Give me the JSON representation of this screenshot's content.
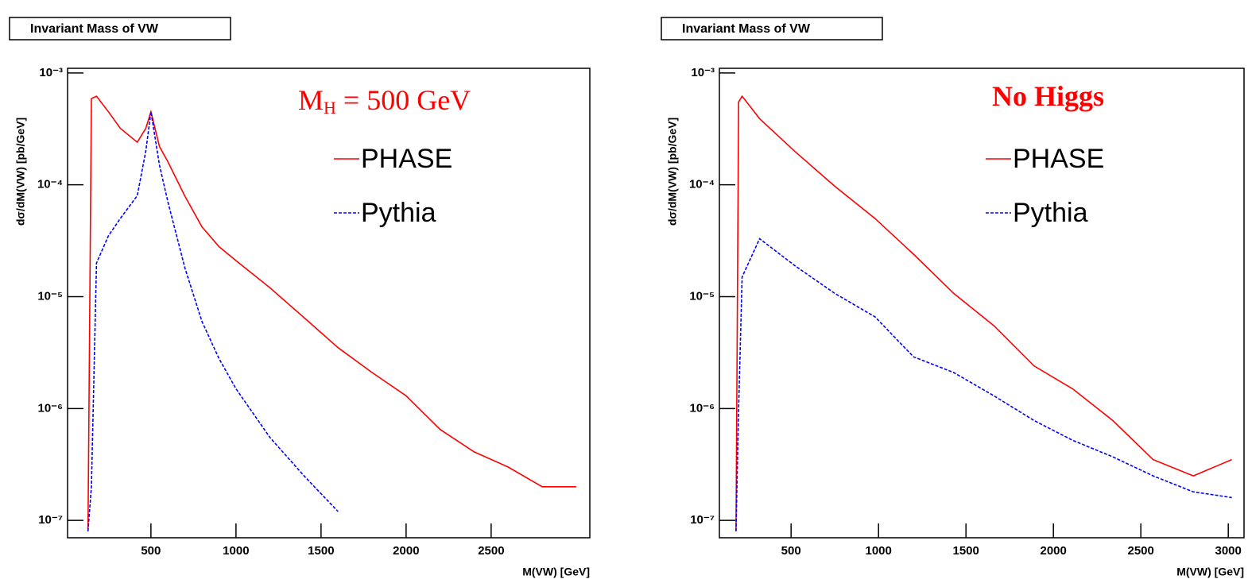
{
  "chart_data": [
    {
      "type": "line",
      "title": "Invariant Mass of VW",
      "xlabel": "M(VW) [GeV]",
      "ylabel": "dσ/dM(VW) [pb/GeV]",
      "annotation": {
        "text": "M",
        "sub": "H",
        "rest": " = 500 GeV"
      },
      "log_y": true,
      "xlim": [
        10,
        3080
      ],
      "ylim": [
        7e-08,
        0.0011
      ],
      "xticks": [
        500,
        1000,
        1500,
        2000,
        2500
      ],
      "yticks": [
        {
          "value": 0.001,
          "label": "10⁻³"
        },
        {
          "value": 0.0001,
          "label": "10⁻⁴"
        },
        {
          "value": 1e-05,
          "label": "10⁻⁵"
        },
        {
          "value": 1e-06,
          "label": "10⁻⁶"
        },
        {
          "value": 1e-07,
          "label": "10⁻⁷"
        }
      ],
      "x": [
        130,
        150,
        180,
        250,
        320,
        420,
        470,
        500,
        550,
        600,
        700,
        800,
        900,
        1000,
        1200,
        1400,
        1600,
        1800,
        2000,
        2200,
        2400,
        2600,
        2800,
        3000
      ],
      "series": [
        {
          "name": "PHASE",
          "color": "#ff0000",
          "linestyle": "solid",
          "values": [
            8e-08,
            0.00059,
            0.00062,
            0.00045,
            0.00032,
            0.00024,
            0.00032,
            0.00045,
            0.00022,
            0.00016,
            7.9e-05,
            4.2e-05,
            2.8e-05,
            2.1e-05,
            1.2e-05,
            6.5e-06,
            3.5e-06,
            2.1e-06,
            1.3e-06,
            6.5e-07,
            4.1e-07,
            3e-07,
            2e-07,
            2e-07
          ]
        },
        {
          "name": "Pythia",
          "color": "#0000ff",
          "linestyle": "dashed",
          "values": [
            8e-08,
            2e-07,
            2e-05,
            3.5e-05,
            5e-05,
            8e-05,
            0.0002,
            0.00045,
            0.00015,
            7e-05,
            1.8e-05,
            6e-06,
            2.8e-06,
            1.5e-06,
            5.5e-07,
            2.5e-07,
            1.2e-07,
            null,
            null,
            null,
            null,
            null,
            null,
            null
          ]
        }
      ]
    },
    {
      "type": "line",
      "title": "Invariant Mass of VW",
      "xlabel": "M(VW) [GeV]",
      "ylabel": "dσ/dM(VW) [pb/GeV]",
      "annotation": {
        "text": "No Higgs"
      },
      "log_y": true,
      "xlim": [
        90,
        3090
      ],
      "ylim": [
        7e-08,
        0.0011
      ],
      "xticks": [
        500,
        1000,
        1500,
        2000,
        2500,
        3000
      ],
      "yticks": [
        {
          "value": 0.001,
          "label": "10⁻³"
        },
        {
          "value": 0.0001,
          "label": "10⁻⁴"
        },
        {
          "value": 1e-05,
          "label": "10⁻⁵"
        },
        {
          "value": 1e-06,
          "label": "10⁻⁶"
        },
        {
          "value": 1e-07,
          "label": "10⁻⁷"
        }
      ],
      "x": [
        185,
        200,
        220,
        320,
        520,
        750,
        980,
        1200,
        1430,
        1660,
        1890,
        2110,
        2340,
        2570,
        2800,
        3020
      ],
      "series": [
        {
          "name": "PHASE",
          "color": "#ff0000",
          "linestyle": "solid",
          "values": [
            8e-08,
            0.00055,
            0.00062,
            0.00039,
            0.0002,
            9.7e-05,
            5e-05,
            2.4e-05,
            1.07e-05,
            5.5e-06,
            2.4e-06,
            1.5e-06,
            7.8e-07,
            3.5e-07,
            2.5e-07,
            3.5e-07
          ]
        },
        {
          "name": "Pythia",
          "color": "#0000ff",
          "linestyle": "dashed",
          "values": [
            8e-08,
            1e-06,
            1.5e-05,
            3.3e-05,
            1.9e-05,
            1.07e-05,
            6.6e-06,
            2.9e-06,
            2.1e-06,
            1.3e-06,
            7.8e-07,
            5.2e-07,
            3.7e-07,
            2.5e-07,
            1.8e-07,
            1.6e-07
          ]
        }
      ]
    }
  ]
}
